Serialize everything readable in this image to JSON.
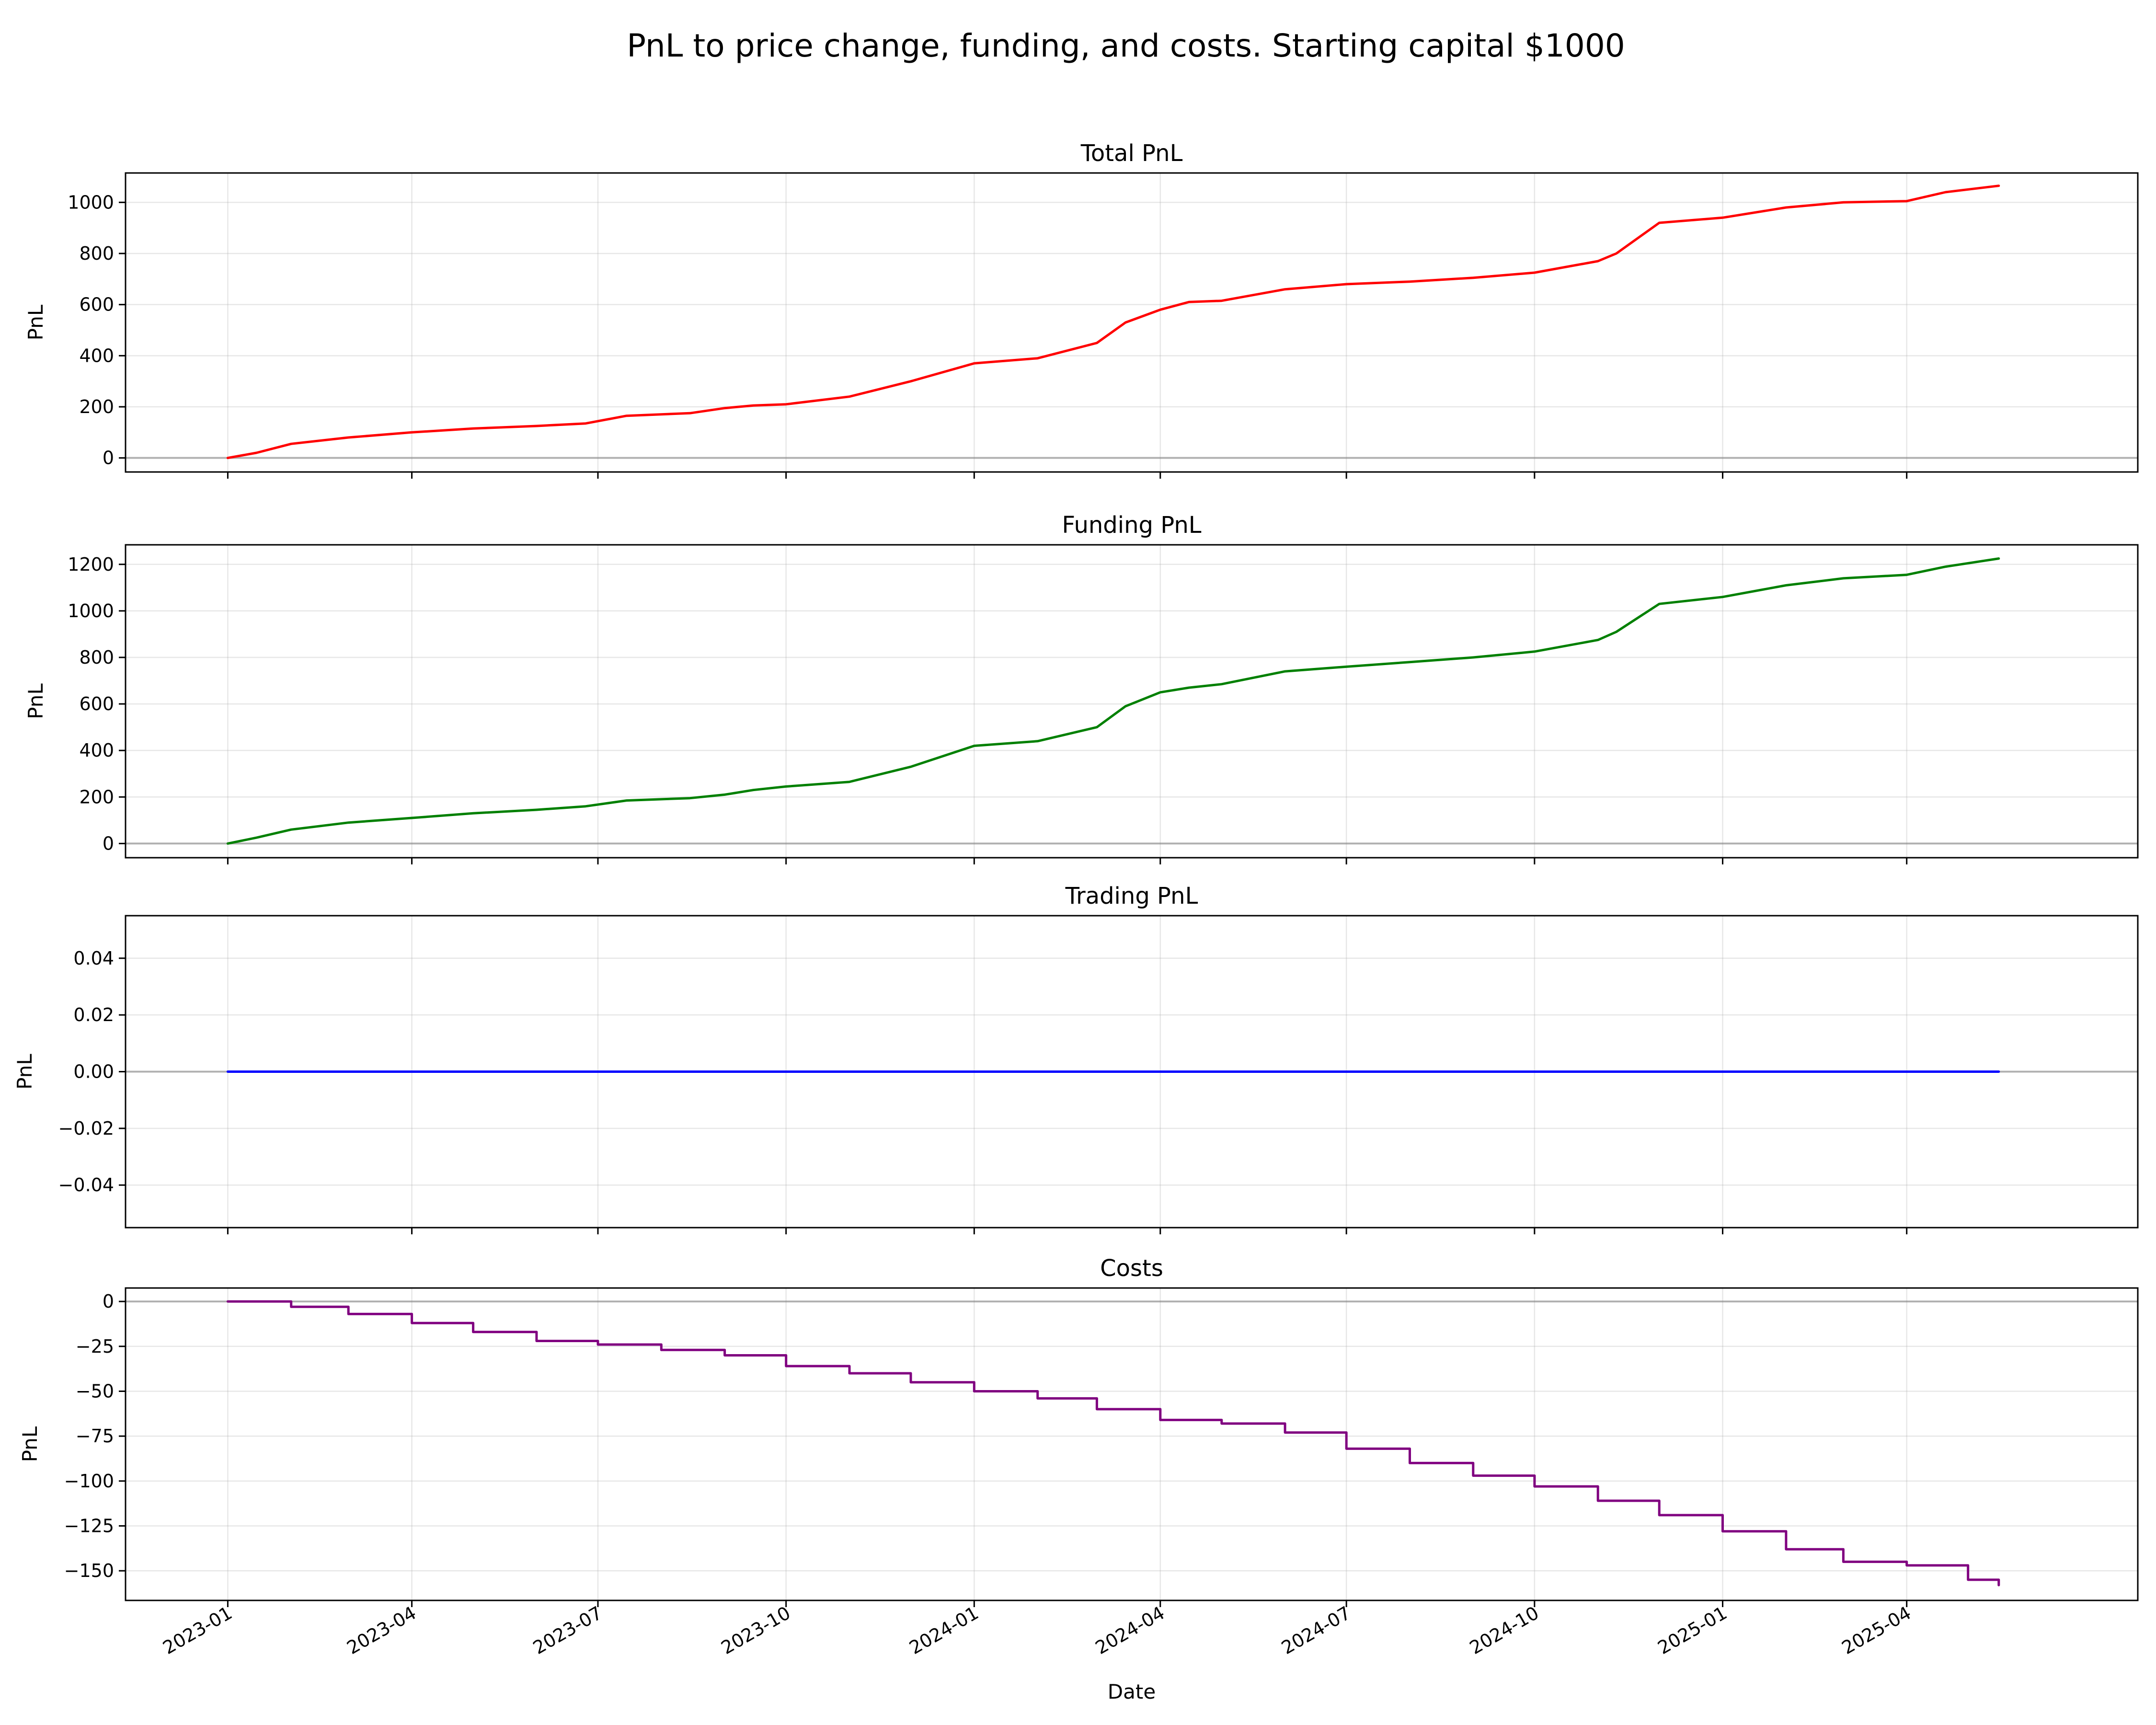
{
  "figure": {
    "title": "PnL to price change, funding, and costs. Starting capital $1000",
    "xlabel": "Date",
    "x_tick_labels": [
      "2023-01",
      "2023-04",
      "2023-07",
      "2023-10",
      "2024-01",
      "2024-04",
      "2024-07",
      "2024-10",
      "2025-01",
      "2025-04"
    ]
  },
  "chart_data": [
    {
      "type": "line",
      "title": "Total PnL",
      "ylabel": "PnL",
      "color": "#ff0000",
      "xlim": [
        "2022-11-12",
        "2025-07-23"
      ],
      "ylim": [
        -55,
        1115
      ],
      "yticks": [
        0,
        200,
        400,
        600,
        800,
        1000
      ],
      "ytick_labels": [
        "0",
        "200",
        "400",
        "600",
        "800",
        "1000"
      ],
      "zero_line": 0,
      "grid": true,
      "x": [
        "2023-01-01",
        "2023-01-15",
        "2023-02-01",
        "2023-03-01",
        "2023-04-01",
        "2023-05-01",
        "2023-06-01",
        "2023-06-25",
        "2023-07-15",
        "2023-08-15",
        "2023-09-01",
        "2023-09-15",
        "2023-10-01",
        "2023-11-01",
        "2023-12-01",
        "2024-01-01",
        "2024-02-01",
        "2024-03-01",
        "2024-03-15",
        "2024-04-01",
        "2024-04-15",
        "2024-05-01",
        "2024-06-01",
        "2024-07-01",
        "2024-08-01",
        "2024-09-01",
        "2024-10-01",
        "2024-11-01",
        "2024-11-10",
        "2024-12-01",
        "2025-01-01",
        "2025-02-01",
        "2025-03-01",
        "2025-04-01",
        "2025-04-20",
        "2025-05-16"
      ],
      "y": [
        0,
        20,
        55,
        80,
        100,
        115,
        125,
        135,
        165,
        175,
        195,
        205,
        210,
        240,
        300,
        370,
        390,
        450,
        530,
        580,
        610,
        615,
        660,
        680,
        690,
        705,
        725,
        770,
        800,
        920,
        940,
        980,
        1000,
        1005,
        1040,
        1065
      ]
    },
    {
      "type": "line",
      "title": "Funding PnL",
      "ylabel": "PnL",
      "color": "#008000",
      "xlim": [
        "2022-11-12",
        "2025-07-23"
      ],
      "ylim": [
        -61,
        1284
      ],
      "yticks": [
        0,
        200,
        400,
        600,
        800,
        1000,
        1200
      ],
      "ytick_labels": [
        "0",
        "200",
        "400",
        "600",
        "800",
        "1000",
        "1200"
      ],
      "zero_line": 0,
      "grid": true,
      "x": [
        "2023-01-01",
        "2023-01-15",
        "2023-02-01",
        "2023-03-01",
        "2023-04-01",
        "2023-05-01",
        "2023-06-01",
        "2023-06-25",
        "2023-07-15",
        "2023-08-15",
        "2023-09-01",
        "2023-09-15",
        "2023-10-01",
        "2023-11-01",
        "2023-12-01",
        "2024-01-01",
        "2024-02-01",
        "2024-03-01",
        "2024-03-15",
        "2024-04-01",
        "2024-04-15",
        "2024-05-01",
        "2024-06-01",
        "2024-07-01",
        "2024-08-01",
        "2024-09-01",
        "2024-10-01",
        "2024-11-01",
        "2024-11-10",
        "2024-12-01",
        "2025-01-01",
        "2025-02-01",
        "2025-03-01",
        "2025-04-01",
        "2025-04-20",
        "2025-05-16"
      ],
      "y": [
        0,
        25,
        60,
        90,
        110,
        130,
        145,
        160,
        185,
        195,
        210,
        230,
        245,
        265,
        330,
        420,
        440,
        500,
        590,
        650,
        670,
        685,
        740,
        760,
        780,
        800,
        825,
        875,
        910,
        1030,
        1060,
        1110,
        1140,
        1155,
        1190,
        1225
      ]
    },
    {
      "type": "line",
      "title": "Trading PnL",
      "ylabel": "PnL",
      "color": "#0000ff",
      "xlim": [
        "2022-11-12",
        "2025-07-23"
      ],
      "ylim": [
        -0.055,
        0.055
      ],
      "yticks": [
        -0.04,
        -0.02,
        0,
        0.02,
        0.04
      ],
      "ytick_labels": [
        "−0.04",
        "−0.02",
        "0.00",
        "0.02",
        "0.04"
      ],
      "zero_line": 0,
      "grid": true,
      "x": [
        "2023-01-01",
        "2025-05-16"
      ],
      "y": [
        0,
        0
      ]
    },
    {
      "type": "line",
      "title": "Costs",
      "ylabel": "PnL",
      "color": "#800080",
      "step": true,
      "xlim": [
        "2022-11-12",
        "2025-07-23"
      ],
      "ylim": [
        -166.5,
        7.5
      ],
      "yticks": [
        -150,
        -125,
        -100,
        -75,
        -50,
        -25,
        0
      ],
      "ytick_labels": [
        "−150",
        "−125",
        "−100",
        "−75",
        "−50",
        "−25",
        "0"
      ],
      "zero_line": 0,
      "grid": true,
      "x": [
        "2023-01-01",
        "2023-02-01",
        "2023-03-01",
        "2023-04-01",
        "2023-05-01",
        "2023-06-01",
        "2023-07-01",
        "2023-08-01",
        "2023-09-01",
        "2023-10-01",
        "2023-11-01",
        "2023-12-01",
        "2024-01-01",
        "2024-02-01",
        "2024-03-01",
        "2024-04-01",
        "2024-05-01",
        "2024-06-01",
        "2024-07-01",
        "2024-08-01",
        "2024-09-01",
        "2024-10-01",
        "2024-11-01",
        "2024-12-01",
        "2025-01-01",
        "2025-02-01",
        "2025-03-01",
        "2025-04-01",
        "2025-05-01",
        "2025-05-16"
      ],
      "y": [
        0,
        -3,
        -7,
        -12,
        -17,
        -22,
        -24,
        -27,
        -30,
        -36,
        -40,
        -45,
        -50,
        -54,
        -60,
        -66,
        -68,
        -73,
        -82,
        -90,
        -97,
        -103,
        -111,
        -119,
        -128,
        -138,
        -145,
        -147,
        -155,
        -158
      ]
    }
  ]
}
